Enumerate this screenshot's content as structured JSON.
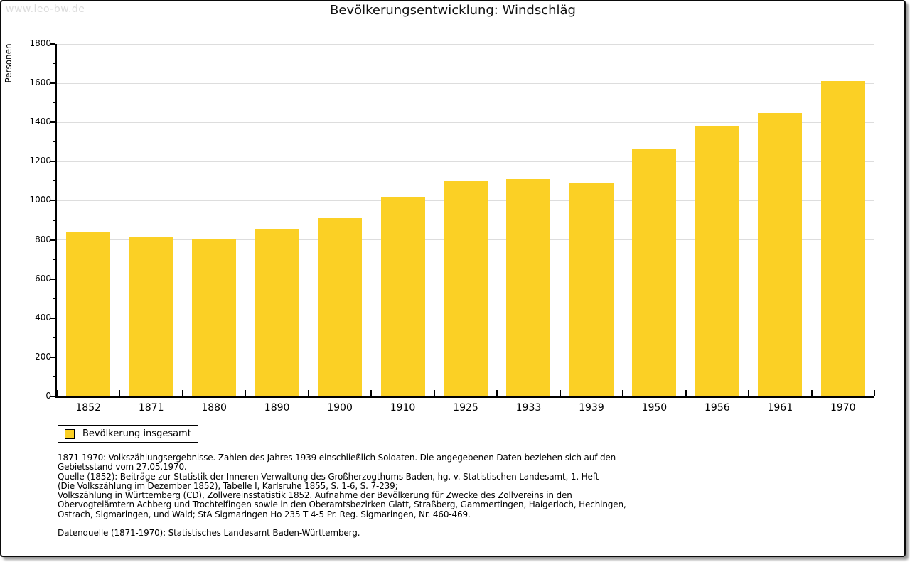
{
  "watermark": "www.leo-bw.de",
  "title": "Bevölkerungsentwicklung: Windschläg",
  "colors": {
    "bar": "#FBD025",
    "grid": "#DDDDDD",
    "axis": "#000000",
    "watermark": "#DCDCDC"
  },
  "chart_data": {
    "type": "bar",
    "title": "Bevölkerungsentwicklung: Windschläg",
    "xlabel": "",
    "ylabel": "Personen",
    "categories": [
      "1852",
      "1871",
      "1880",
      "1890",
      "1900",
      "1910",
      "1925",
      "1933",
      "1939",
      "1950",
      "1956",
      "1961",
      "1970"
    ],
    "series": [
      {
        "name": "Bevölkerung insgesamt",
        "values": [
          840,
          812,
          805,
          855,
          912,
          1020,
          1100,
          1111,
          1092,
          1264,
          1383,
          1448,
          1612
        ]
      }
    ],
    "ylim": [
      0,
      1800
    ],
    "yticks": [
      0,
      200,
      400,
      600,
      800,
      1000,
      1200,
      1400,
      1600,
      1800
    ],
    "ytick_minor_step": 100,
    "grid": "horizontal",
    "legend_position": "bottom-left",
    "bar_color": "#FBD025"
  },
  "legend": {
    "label": "Bevölkerung insgesamt"
  },
  "footnotes": {
    "lines": [
      "1871-1970: Volkszählungsergebnisse. Zahlen des Jahres 1939 einschließlich Soldaten. Die angegebenen Daten beziehen sich auf den",
      "Gebietsstand vom 27.05.1970.",
      "Quelle (1852): Beiträge zur Statistik der Inneren Verwaltung des Großherzogthums Baden, hg. v. Statistischen Landesamt, 1. Heft",
      "(Die Volkszählung im Dezember 1852), Tabelle I, Karlsruhe 1855, S. 1-6, S. 7-239;",
      "Volkszählung in Württemberg (CD), Zollvereinsstatistik 1852. Aufnahme der Bevölkerung für Zwecke des Zollvereins in den",
      "Obervogteiämtern Achberg und Trochtelfingen sowie in den Oberamtsbezirken Glatt, Straßberg, Gammertingen, Haigerloch, Hechingen,",
      "Ostrach, Sigmaringen, und Wald; StA Sigmaringen Ho 235 T 4-5 Pr. Reg. Sigmaringen, Nr. 460-469."
    ],
    "datasource": "Datenquelle (1871-1970): Statistisches Landesamt Baden-Württemberg."
  }
}
